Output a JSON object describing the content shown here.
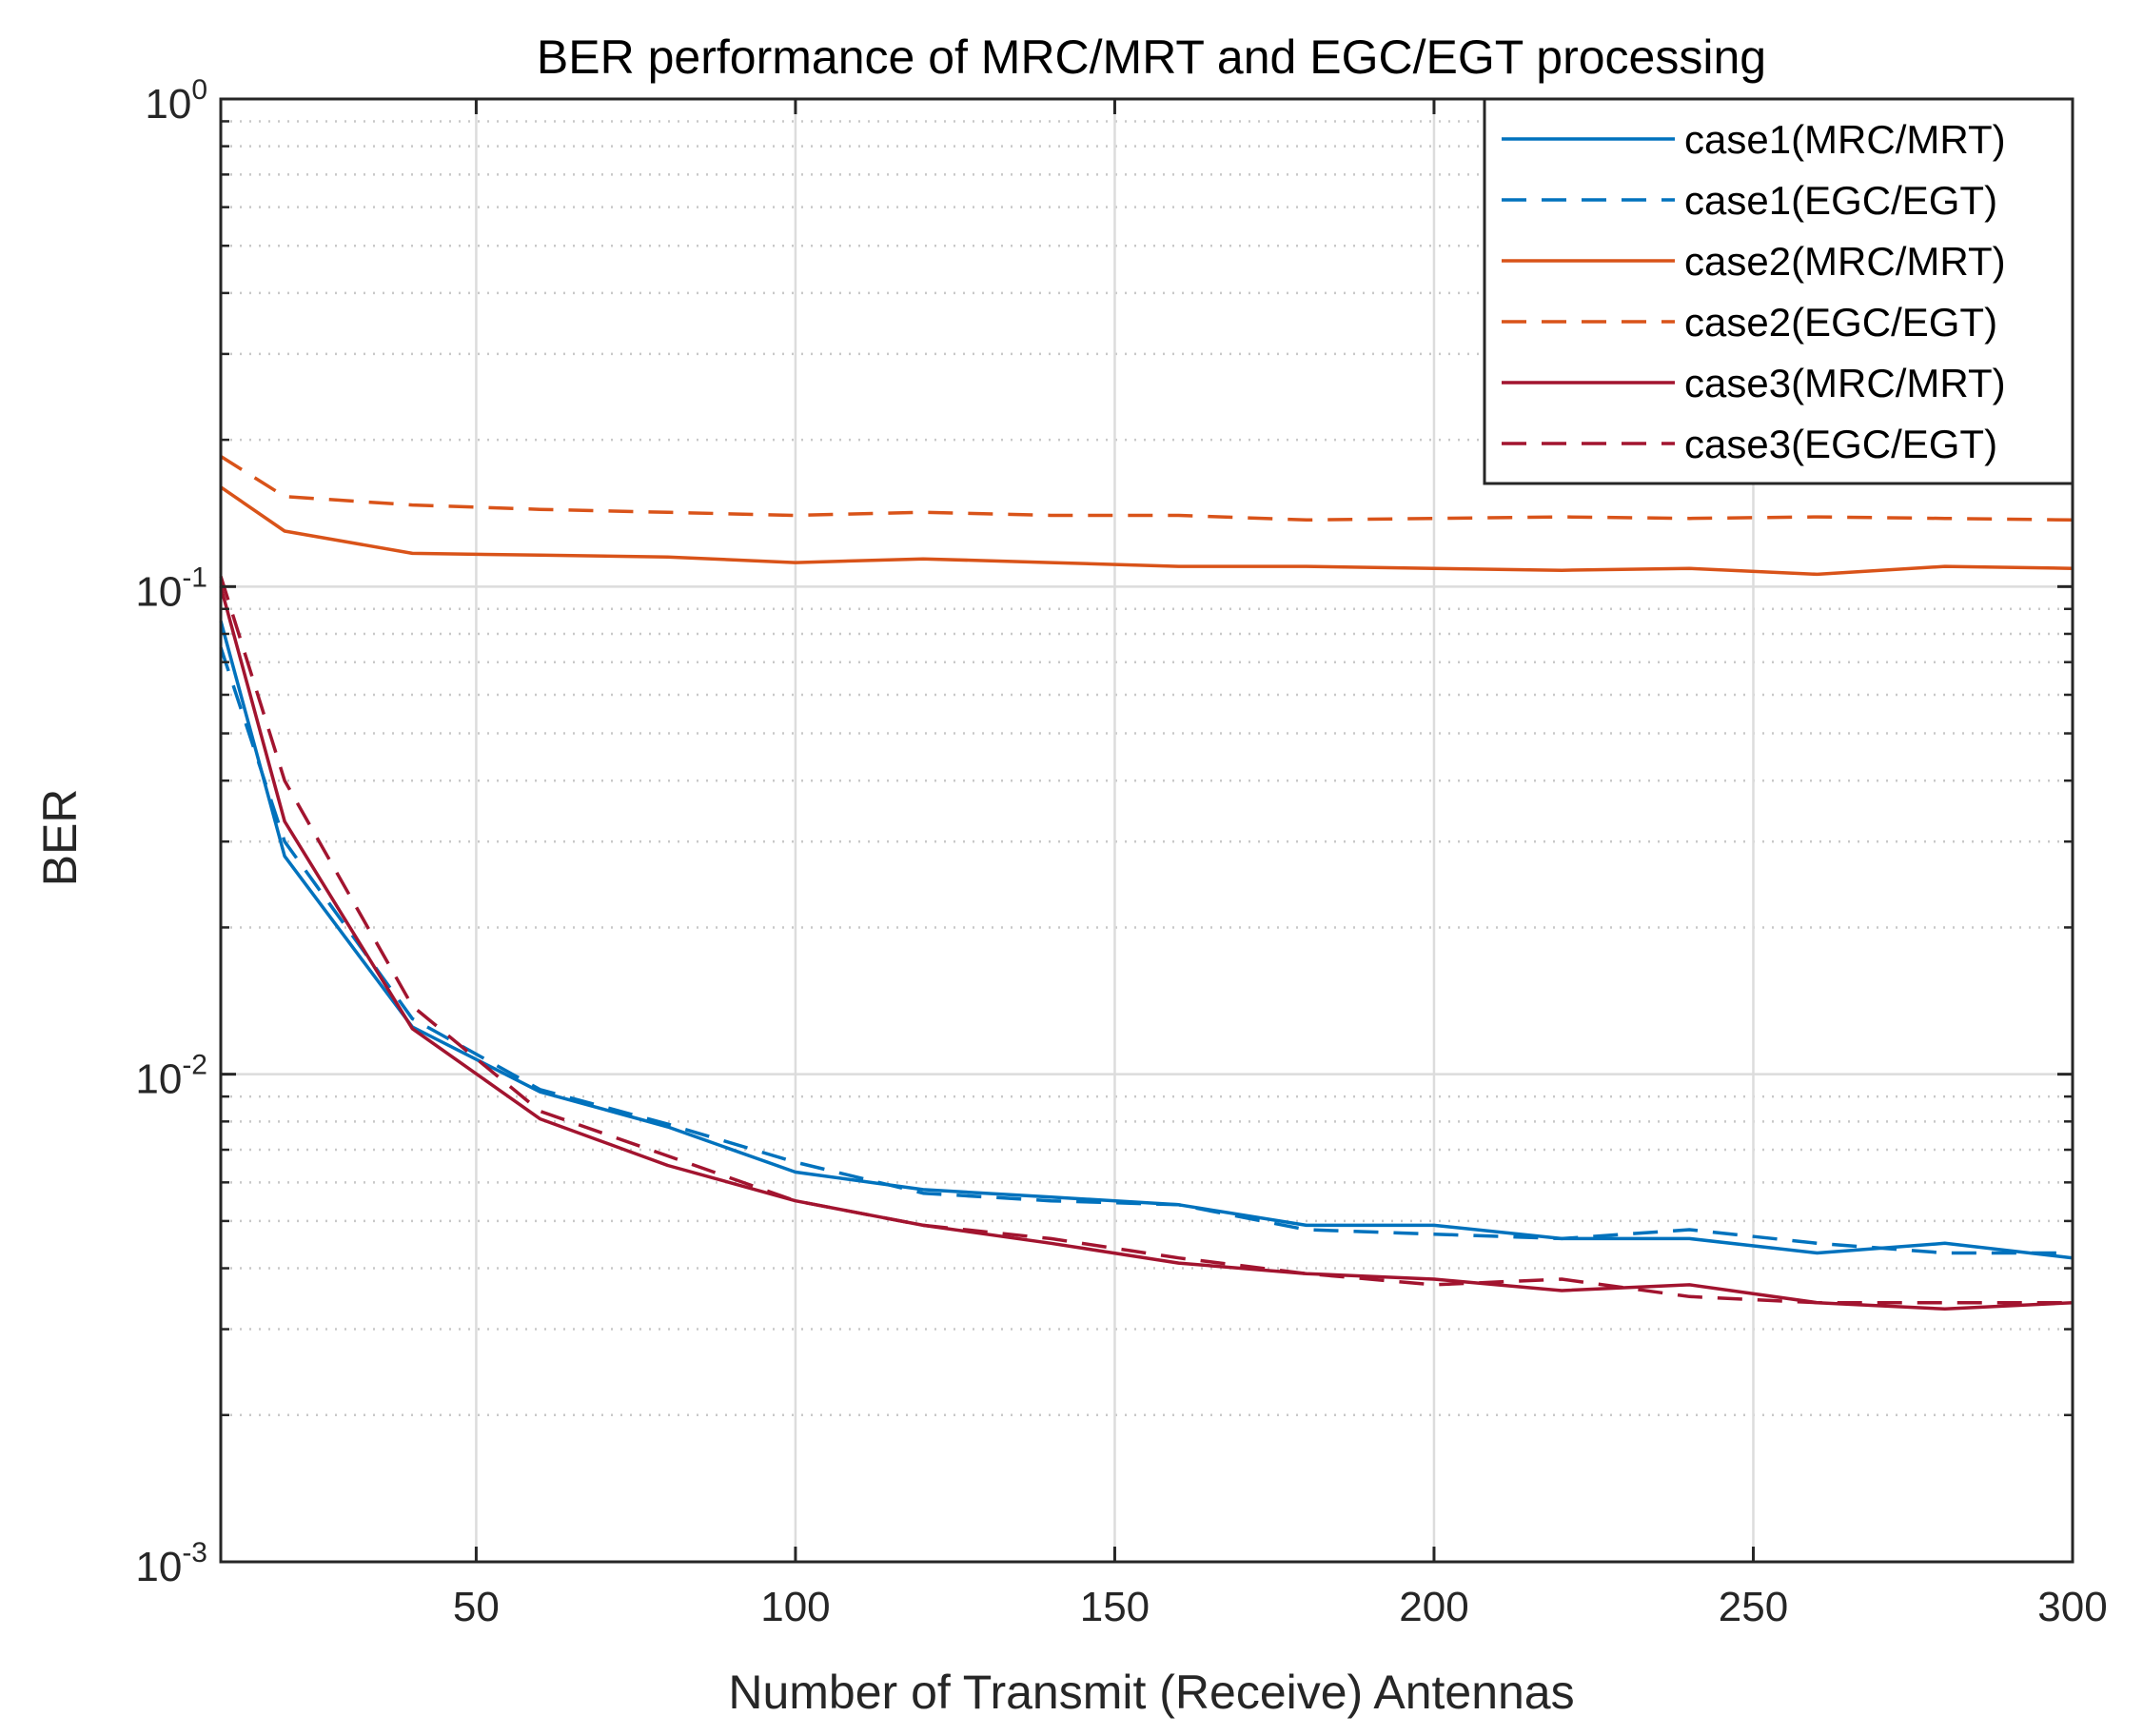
{
  "chart_data": {
    "type": "line",
    "title": "BER performance of MRC/MRT and EGC/EGT processing",
    "xlabel": "Number of Transmit (Receive) Antennas",
    "ylabel": "BER",
    "xlim": [
      10,
      300
    ],
    "ylim": [
      0.001,
      1
    ],
    "yscale": "log",
    "grid": true,
    "legend_location": "top-right",
    "x_ticks": [
      50,
      100,
      150,
      200,
      250,
      300
    ],
    "y_ticks": [
      {
        "base": "10",
        "exp": "-3",
        "value": 0.001
      },
      {
        "base": "10",
        "exp": "-2",
        "value": 0.01
      },
      {
        "base": "10",
        "exp": "-1",
        "value": 0.1
      },
      {
        "base": "10",
        "exp": "0",
        "value": 1
      }
    ],
    "x": [
      10,
      20,
      40,
      60,
      80,
      100,
      120,
      140,
      160,
      180,
      200,
      220,
      240,
      260,
      280,
      300
    ],
    "series": [
      {
        "name": "case1(MRC/MRT)",
        "color": "#0072BD",
        "dash": "solid",
        "values": [
          0.085,
          0.028,
          0.0125,
          0.0092,
          0.0078,
          0.0063,
          0.0058,
          0.0056,
          0.0054,
          0.0049,
          0.0049,
          0.0046,
          0.0046,
          0.0043,
          0.0045,
          0.0042
        ]
      },
      {
        "name": "case1(EGC/EGT)",
        "color": "#0072BD",
        "dash": "dashed",
        "values": [
          0.075,
          0.03,
          0.013,
          0.0093,
          0.0079,
          0.0066,
          0.0057,
          0.0055,
          0.0054,
          0.0048,
          0.0047,
          0.0046,
          0.0048,
          0.0045,
          0.0043,
          0.0043
        ]
      },
      {
        "name": "case2(MRC/MRT)",
        "color": "#D95319",
        "dash": "solid",
        "values": [
          0.16,
          0.13,
          0.117,
          0.116,
          0.115,
          0.112,
          0.114,
          0.112,
          0.11,
          0.11,
          0.109,
          0.108,
          0.109,
          0.106,
          0.11,
          0.109
        ]
      },
      {
        "name": "case2(EGC/EGT)",
        "color": "#D95319",
        "dash": "dashed",
        "values": [
          0.185,
          0.153,
          0.147,
          0.144,
          0.142,
          0.14,
          0.142,
          0.14,
          0.14,
          0.137,
          0.138,
          0.139,
          0.138,
          0.139,
          0.138,
          0.137
        ]
      },
      {
        "name": "case3(MRC/MRT)",
        "color": "#A2142F",
        "dash": "solid",
        "values": [
          0.1,
          0.033,
          0.0124,
          0.0081,
          0.0065,
          0.0055,
          0.0049,
          0.0045,
          0.0041,
          0.0039,
          0.0038,
          0.0036,
          0.0037,
          0.0034,
          0.0033,
          0.0034
        ]
      },
      {
        "name": "case3(EGC/EGT)",
        "color": "#A2142F",
        "dash": "dashed",
        "values": [
          0.105,
          0.04,
          0.0138,
          0.0084,
          0.0068,
          0.0055,
          0.0049,
          0.0046,
          0.0042,
          0.0039,
          0.0037,
          0.0038,
          0.0035,
          0.0034,
          0.0034,
          0.0034
        ]
      }
    ]
  }
}
